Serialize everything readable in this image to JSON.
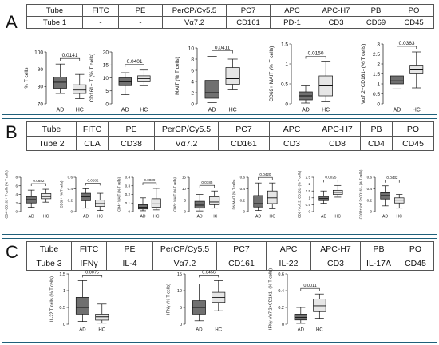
{
  "panels": [
    {
      "letter": "A",
      "tube_table": {
        "header": [
          "Tube",
          "FITC",
          "PE",
          "PerCP/Cy5.5",
          "PC7",
          "APC",
          "APC-H7",
          "PB",
          "PO"
        ],
        "row": [
          "Tube 1",
          "-",
          "-",
          "Vα7.2",
          "CD161",
          "PD-1",
          "CD3",
          "CD69",
          "CD45"
        ]
      }
    },
    {
      "letter": "B",
      "tube_table": {
        "header": [
          "Tube",
          "FITC",
          "PE",
          "PerCP/Cy5.5",
          "PC7",
          "APC",
          "APC-H7",
          "PB",
          "PO"
        ],
        "row": [
          "Tube 2",
          "CLA",
          "CD38",
          "Vα7.2",
          "CD161",
          "CD3",
          "CD8",
          "CD4",
          "CD45"
        ]
      }
    },
    {
      "letter": "C",
      "tube_table": {
        "header": [
          "Tube",
          "FITC",
          "PE",
          "PerCP/Cy5.5",
          "PC7",
          "APC",
          "APC-H7",
          "PB",
          "PO"
        ],
        "row": [
          "Tube 3",
          "IFNγ",
          "IL-4",
          "Vα7.2",
          "CD161",
          "IL-22",
          "CD3",
          "IL-17A",
          "CD45"
        ]
      }
    }
  ],
  "colors": {
    "AD": "#707070",
    "HC": "#e6e6e6",
    "frame": "#1f5f7a",
    "line": "#111111"
  },
  "chart_data": [
    {
      "panel": "A",
      "type": "box",
      "ylabel": "% T cells",
      "categories": [
        "AD",
        "HC"
      ],
      "ylim": [
        70,
        100
      ],
      "yticks": [
        70,
        80,
        90,
        100
      ],
      "series": [
        {
          "name": "AD",
          "min": 76,
          "q1": 79,
          "median": 82.5,
          "q3": 85.5,
          "max": 93
        },
        {
          "name": "HC",
          "min": 73,
          "q1": 76,
          "median": 78,
          "q3": 81,
          "max": 87
        }
      ],
      "pvalue": "0.0141"
    },
    {
      "panel": "A",
      "type": "box",
      "ylabel": "CD161+ T (% T cells)",
      "categories": [
        "AD",
        "HC"
      ],
      "ylim": [
        0,
        20
      ],
      "yticks": [
        0,
        5,
        10,
        15,
        20
      ],
      "series": [
        {
          "name": "AD",
          "min": 3.5,
          "q1": 7,
          "median": 8.5,
          "q3": 10,
          "max": 12
        },
        {
          "name": "HC",
          "min": 7,
          "q1": 8.5,
          "median": 9.7,
          "q3": 10.8,
          "max": 13
        }
      ],
      "pvalue": "0.0401"
    },
    {
      "panel": "A",
      "type": "box",
      "ylabel": "MAIT (% T cells)",
      "categories": [
        "AD",
        "HC"
      ],
      "ylim": [
        0,
        10
      ],
      "yticks": [
        0,
        2,
        4,
        6,
        8,
        10
      ],
      "series": [
        {
          "name": "AD",
          "min": 0.2,
          "q1": 1,
          "median": 2,
          "q3": 4.2,
          "max": 8.5
        },
        {
          "name": "HC",
          "min": 2.5,
          "q1": 3.5,
          "median": 4.5,
          "q3": 6.5,
          "max": 8
        }
      ],
      "pvalue": "0.0411"
    },
    {
      "panel": "A",
      "type": "box",
      "ylabel": "CD69+ MAIT (% T cells)",
      "categories": [
        "AD",
        "HC"
      ],
      "ylim": [
        0,
        1.5
      ],
      "yticks": [
        0,
        0.5,
        1,
        1.5
      ],
      "series": [
        {
          "name": "AD",
          "min": 0.02,
          "q1": 0.1,
          "median": 0.2,
          "q3": 0.3,
          "max": 0.45
        },
        {
          "name": "HC",
          "min": 0.05,
          "q1": 0.2,
          "median": 0.45,
          "q3": 0.7,
          "max": 1.05
        }
      ],
      "pvalue": "0.0150"
    },
    {
      "panel": "A",
      "type": "box",
      "ylabel": "Vα7.2+CD161- (% T cells)",
      "categories": [
        "AD",
        "HC"
      ],
      "ylim": [
        0,
        3
      ],
      "yticks": [
        0,
        0.5,
        1,
        1.5,
        2,
        2.5,
        3
      ],
      "series": [
        {
          "name": "AD",
          "min": 0.75,
          "q1": 1,
          "median": 1.15,
          "q3": 1.4,
          "max": 2.5
        },
        {
          "name": "HC",
          "min": 0.8,
          "q1": 1.5,
          "median": 1.7,
          "q3": 1.9,
          "max": 2.6
        }
      ],
      "pvalue": "0.0363"
    },
    {
      "panel": "B",
      "type": "box",
      "ylabel": "CD4+CD161+ T cells (% T cells)",
      "categories": [
        "AD",
        "HC"
      ],
      "ylim": [
        0,
        8
      ],
      "yticks": [
        0,
        2,
        4,
        6,
        8
      ],
      "series": [
        {
          "name": "AD",
          "min": 1,
          "q1": 2,
          "median": 2.8,
          "q3": 3.5,
          "max": 5
        },
        {
          "name": "HC",
          "min": 2.2,
          "q1": 3,
          "median": 3.5,
          "q3": 4.2,
          "max": 5.2
        }
      ],
      "pvalue": "0.0682"
    },
    {
      "panel": "B",
      "type": "box",
      "ylabel": "CD38+ (% T cells)",
      "categories": [
        "AD",
        "HC"
      ],
      "ylim": [
        0,
        0.6
      ],
      "yticks": [
        0,
        0.2,
        0.4,
        0.6
      ],
      "series": [
        {
          "name": "AD",
          "min": 0.06,
          "q1": 0.19,
          "median": 0.26,
          "q3": 0.32,
          "max": 0.4
        },
        {
          "name": "HC",
          "min": 0.02,
          "q1": 0.09,
          "median": 0.14,
          "q3": 0.2,
          "max": 0.32
        }
      ],
      "pvalue": "0.0282"
    },
    {
      "panel": "B",
      "type": "box",
      "ylabel": "CD4+ MAIT (% T cells)",
      "categories": [
        "AD",
        "HC"
      ],
      "ylim": [
        0,
        0.4
      ],
      "yticks": [
        0,
        0.1,
        0.2,
        0.3,
        0.4
      ],
      "series": [
        {
          "name": "AD",
          "min": 0.01,
          "q1": 0.03,
          "median": 0.05,
          "q3": 0.08,
          "max": 0.16
        },
        {
          "name": "HC",
          "min": 0.02,
          "q1": 0.05,
          "median": 0.09,
          "q3": 0.15,
          "max": 0.27
        }
      ],
      "pvalue": "0.0039"
    },
    {
      "panel": "B",
      "type": "box",
      "ylabel": "CD8+ MAIT (% T cells)",
      "categories": [
        "AD",
        "HC"
      ],
      "ylim": [
        0,
        15
      ],
      "yticks": [
        0,
        5,
        10,
        15
      ],
      "series": [
        {
          "name": "AD",
          "min": 0.3,
          "q1": 1.5,
          "median": 2.8,
          "q3": 4.5,
          "max": 7.5
        },
        {
          "name": "HC",
          "min": 1.5,
          "q1": 3,
          "median": 4.2,
          "q3": 6.5,
          "max": 9
        }
      ],
      "pvalue": "0.0185"
    },
    {
      "panel": "B",
      "type": "box",
      "ylabel": "DN MAIT (% T cells)",
      "categories": [
        "AD",
        "HC"
      ],
      "ylim": [
        0,
        0.6
      ],
      "yticks": [
        0,
        0.2,
        0.4,
        0.6
      ],
      "series": [
        {
          "name": "AD",
          "min": 0.02,
          "q1": 0.08,
          "median": 0.14,
          "q3": 0.28,
          "max": 0.5
        },
        {
          "name": "HC",
          "min": 0.05,
          "q1": 0.14,
          "median": 0.24,
          "q3": 0.36,
          "max": 0.5
        }
      ],
      "pvalue": "0.0420"
    },
    {
      "panel": "B",
      "type": "box",
      "ylabel": "CD8+Vα7.2+CD161- (% T cells)",
      "categories": [
        "AD",
        "HC"
      ],
      "ylim": [
        0,
        2.5
      ],
      "yticks": [
        0,
        0.5,
        1,
        1.5,
        2,
        2.5
      ],
      "series": [
        {
          "name": "AD",
          "min": 0.6,
          "q1": 0.8,
          "median": 0.95,
          "q3": 1.1,
          "max": 1.5
        },
        {
          "name": "HC",
          "min": 1.05,
          "q1": 1.25,
          "median": 1.4,
          "q3": 1.55,
          "max": 1.9
        }
      ],
      "pvalue": "0.0025"
    },
    {
      "panel": "B",
      "type": "box",
      "ylabel": "CD38+Vα7.2+CD161- (% T cells)",
      "categories": [
        "AD",
        "HC"
      ],
      "ylim": [
        0,
        0.6
      ],
      "yticks": [
        0,
        0.2,
        0.4,
        0.6
      ],
      "series": [
        {
          "name": "AD",
          "min": 0.1,
          "q1": 0.22,
          "median": 0.28,
          "q3": 0.33,
          "max": 0.45
        },
        {
          "name": "HC",
          "min": 0.06,
          "q1": 0.15,
          "median": 0.2,
          "q3": 0.24,
          "max": 0.3
        }
      ],
      "pvalue": "0.0432"
    },
    {
      "panel": "C",
      "type": "box",
      "ylabel": "IL-22 T cells (% T cells)",
      "categories": [
        "AD",
        "HC"
      ],
      "ylim": [
        0,
        1.5
      ],
      "yticks": [
        0,
        0.5,
        1,
        1.5
      ],
      "series": [
        {
          "name": "AD",
          "min": 0.08,
          "q1": 0.3,
          "median": 0.5,
          "q3": 0.8,
          "max": 1.3
        },
        {
          "name": "HC",
          "min": 0.03,
          "q1": 0.12,
          "median": 0.22,
          "q3": 0.3,
          "max": 0.6
        }
      ],
      "pvalue": "0.0075"
    },
    {
      "panel": "C",
      "type": "box",
      "ylabel": "IFNγ (% T cells)",
      "categories": [
        "AD",
        "HC"
      ],
      "ylim": [
        0,
        15
      ],
      "yticks": [
        0,
        5,
        10,
        15
      ],
      "series": [
        {
          "name": "AD",
          "min": 1,
          "q1": 3,
          "median": 5,
          "q3": 7,
          "max": 12
        },
        {
          "name": "HC",
          "min": 4,
          "q1": 6.5,
          "median": 8,
          "q3": 9.5,
          "max": 13
        }
      ],
      "pvalue": "0.0456"
    },
    {
      "panel": "C",
      "type": "box",
      "ylabel": "IFNγ Vα7.2+CD161- (% T cells)",
      "categories": [
        "AD",
        "HC"
      ],
      "ylim": [
        0,
        0.6
      ],
      "yticks": [
        0,
        0.2,
        0.4,
        0.6
      ],
      "series": [
        {
          "name": "AD",
          "min": 0.01,
          "q1": 0.05,
          "median": 0.08,
          "q3": 0.12,
          "max": 0.2
        },
        {
          "name": "HC",
          "min": 0.07,
          "q1": 0.15,
          "median": 0.22,
          "q3": 0.3,
          "max": 0.36
        }
      ],
      "pvalue": "0.0011"
    }
  ]
}
